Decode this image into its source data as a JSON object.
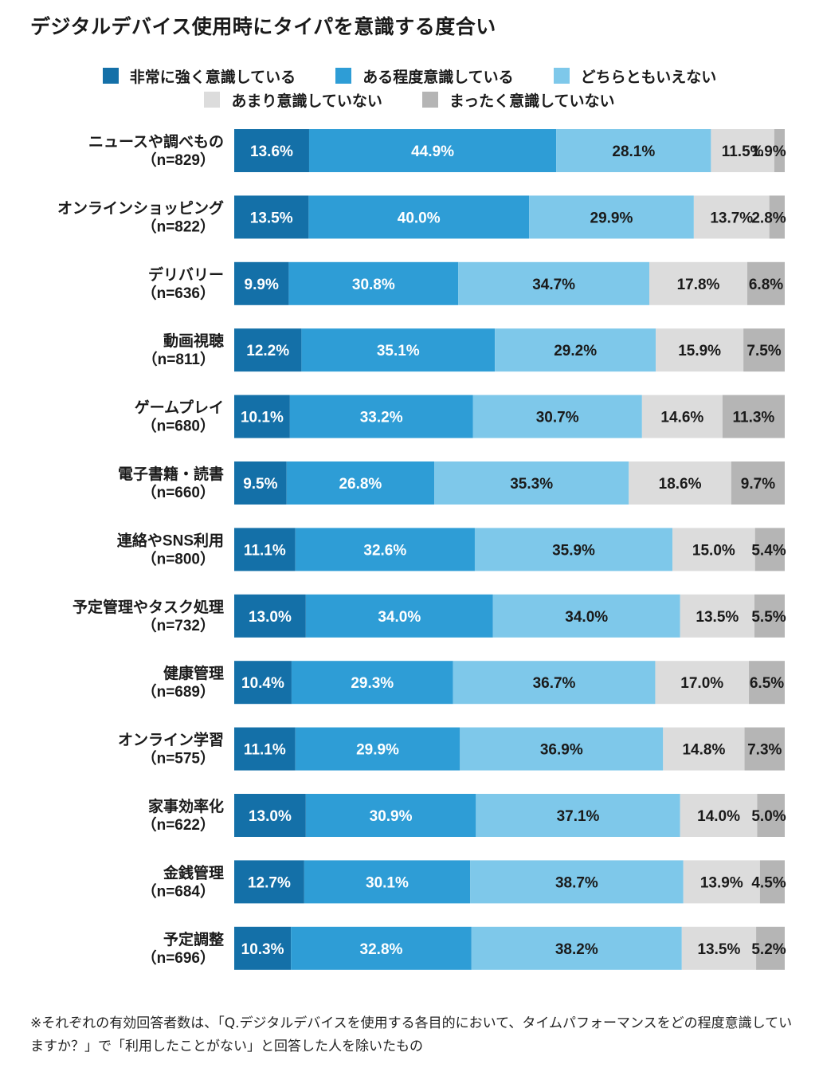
{
  "chart_data": {
    "type": "bar",
    "orientation": "horizontal-stacked-100",
    "title": "デジタルデバイス使用時にタイパを意識する度合い",
    "categories": [
      "ニュースや調べもの",
      "オンラインショッピング",
      "デリバリー",
      "動画視聴",
      "ゲームプレイ",
      "電子書籍・読書",
      "連絡やSNS利用",
      "予定管理やタスク処理",
      "健康管理",
      "オンライン学習",
      "家事効率化",
      "金銭管理",
      "予定調整"
    ],
    "n_labels": [
      "（n=829）",
      "（n=822）",
      "（n=636）",
      "（n=811）",
      "（n=680）",
      "（n=660）",
      "（n=800）",
      "（n=732）",
      "（n=689）",
      "（n=575）",
      "（n=622）",
      "（n=684）",
      "（n=696）"
    ],
    "series": [
      {
        "name": "非常に強く意識している",
        "color": "#1470a8",
        "label_color": "#ffffff",
        "values": [
          13.6,
          13.5,
          9.9,
          12.2,
          10.1,
          9.5,
          11.1,
          13.0,
          10.4,
          11.1,
          13.0,
          12.7,
          10.3
        ]
      },
      {
        "name": "ある程度意識している",
        "color": "#2e9dd6",
        "label_color": "#ffffff",
        "values": [
          44.9,
          40.0,
          30.8,
          35.1,
          33.2,
          26.8,
          32.6,
          34.0,
          29.3,
          29.9,
          30.9,
          30.1,
          32.8
        ]
      },
      {
        "name": "どちらともいえない",
        "color": "#7ec8ea",
        "label_color": "#1a1a1a",
        "values": [
          28.1,
          29.9,
          34.7,
          29.2,
          30.7,
          35.3,
          35.9,
          34.0,
          36.7,
          36.9,
          37.1,
          38.7,
          38.2
        ]
      },
      {
        "name": "あまり意識していない",
        "color": "#dcdcdc",
        "label_color": "#1a1a1a",
        "values": [
          11.5,
          13.7,
          17.8,
          15.9,
          14.6,
          18.6,
          15.0,
          13.5,
          17.0,
          14.8,
          14.0,
          13.9,
          13.5
        ]
      },
      {
        "name": "まったく意識していない",
        "color": "#b5b5b5",
        "label_color": "#1a1a1a",
        "values": [
          1.9,
          2.8,
          6.8,
          7.5,
          11.3,
          9.7,
          5.4,
          5.5,
          6.5,
          7.3,
          5.0,
          4.5,
          5.2
        ]
      }
    ],
    "value_suffix": "%",
    "xlim": [
      0,
      100
    ],
    "grid": false,
    "legend_position": "top"
  },
  "footnote": "※それぞれの有効回答者数は、「Q.デジタルデバイスを使用する各目的において、タイムパフォーマンスをどの程度意識していますか？」で「利用したことがない」と回答した人を除いたもの"
}
